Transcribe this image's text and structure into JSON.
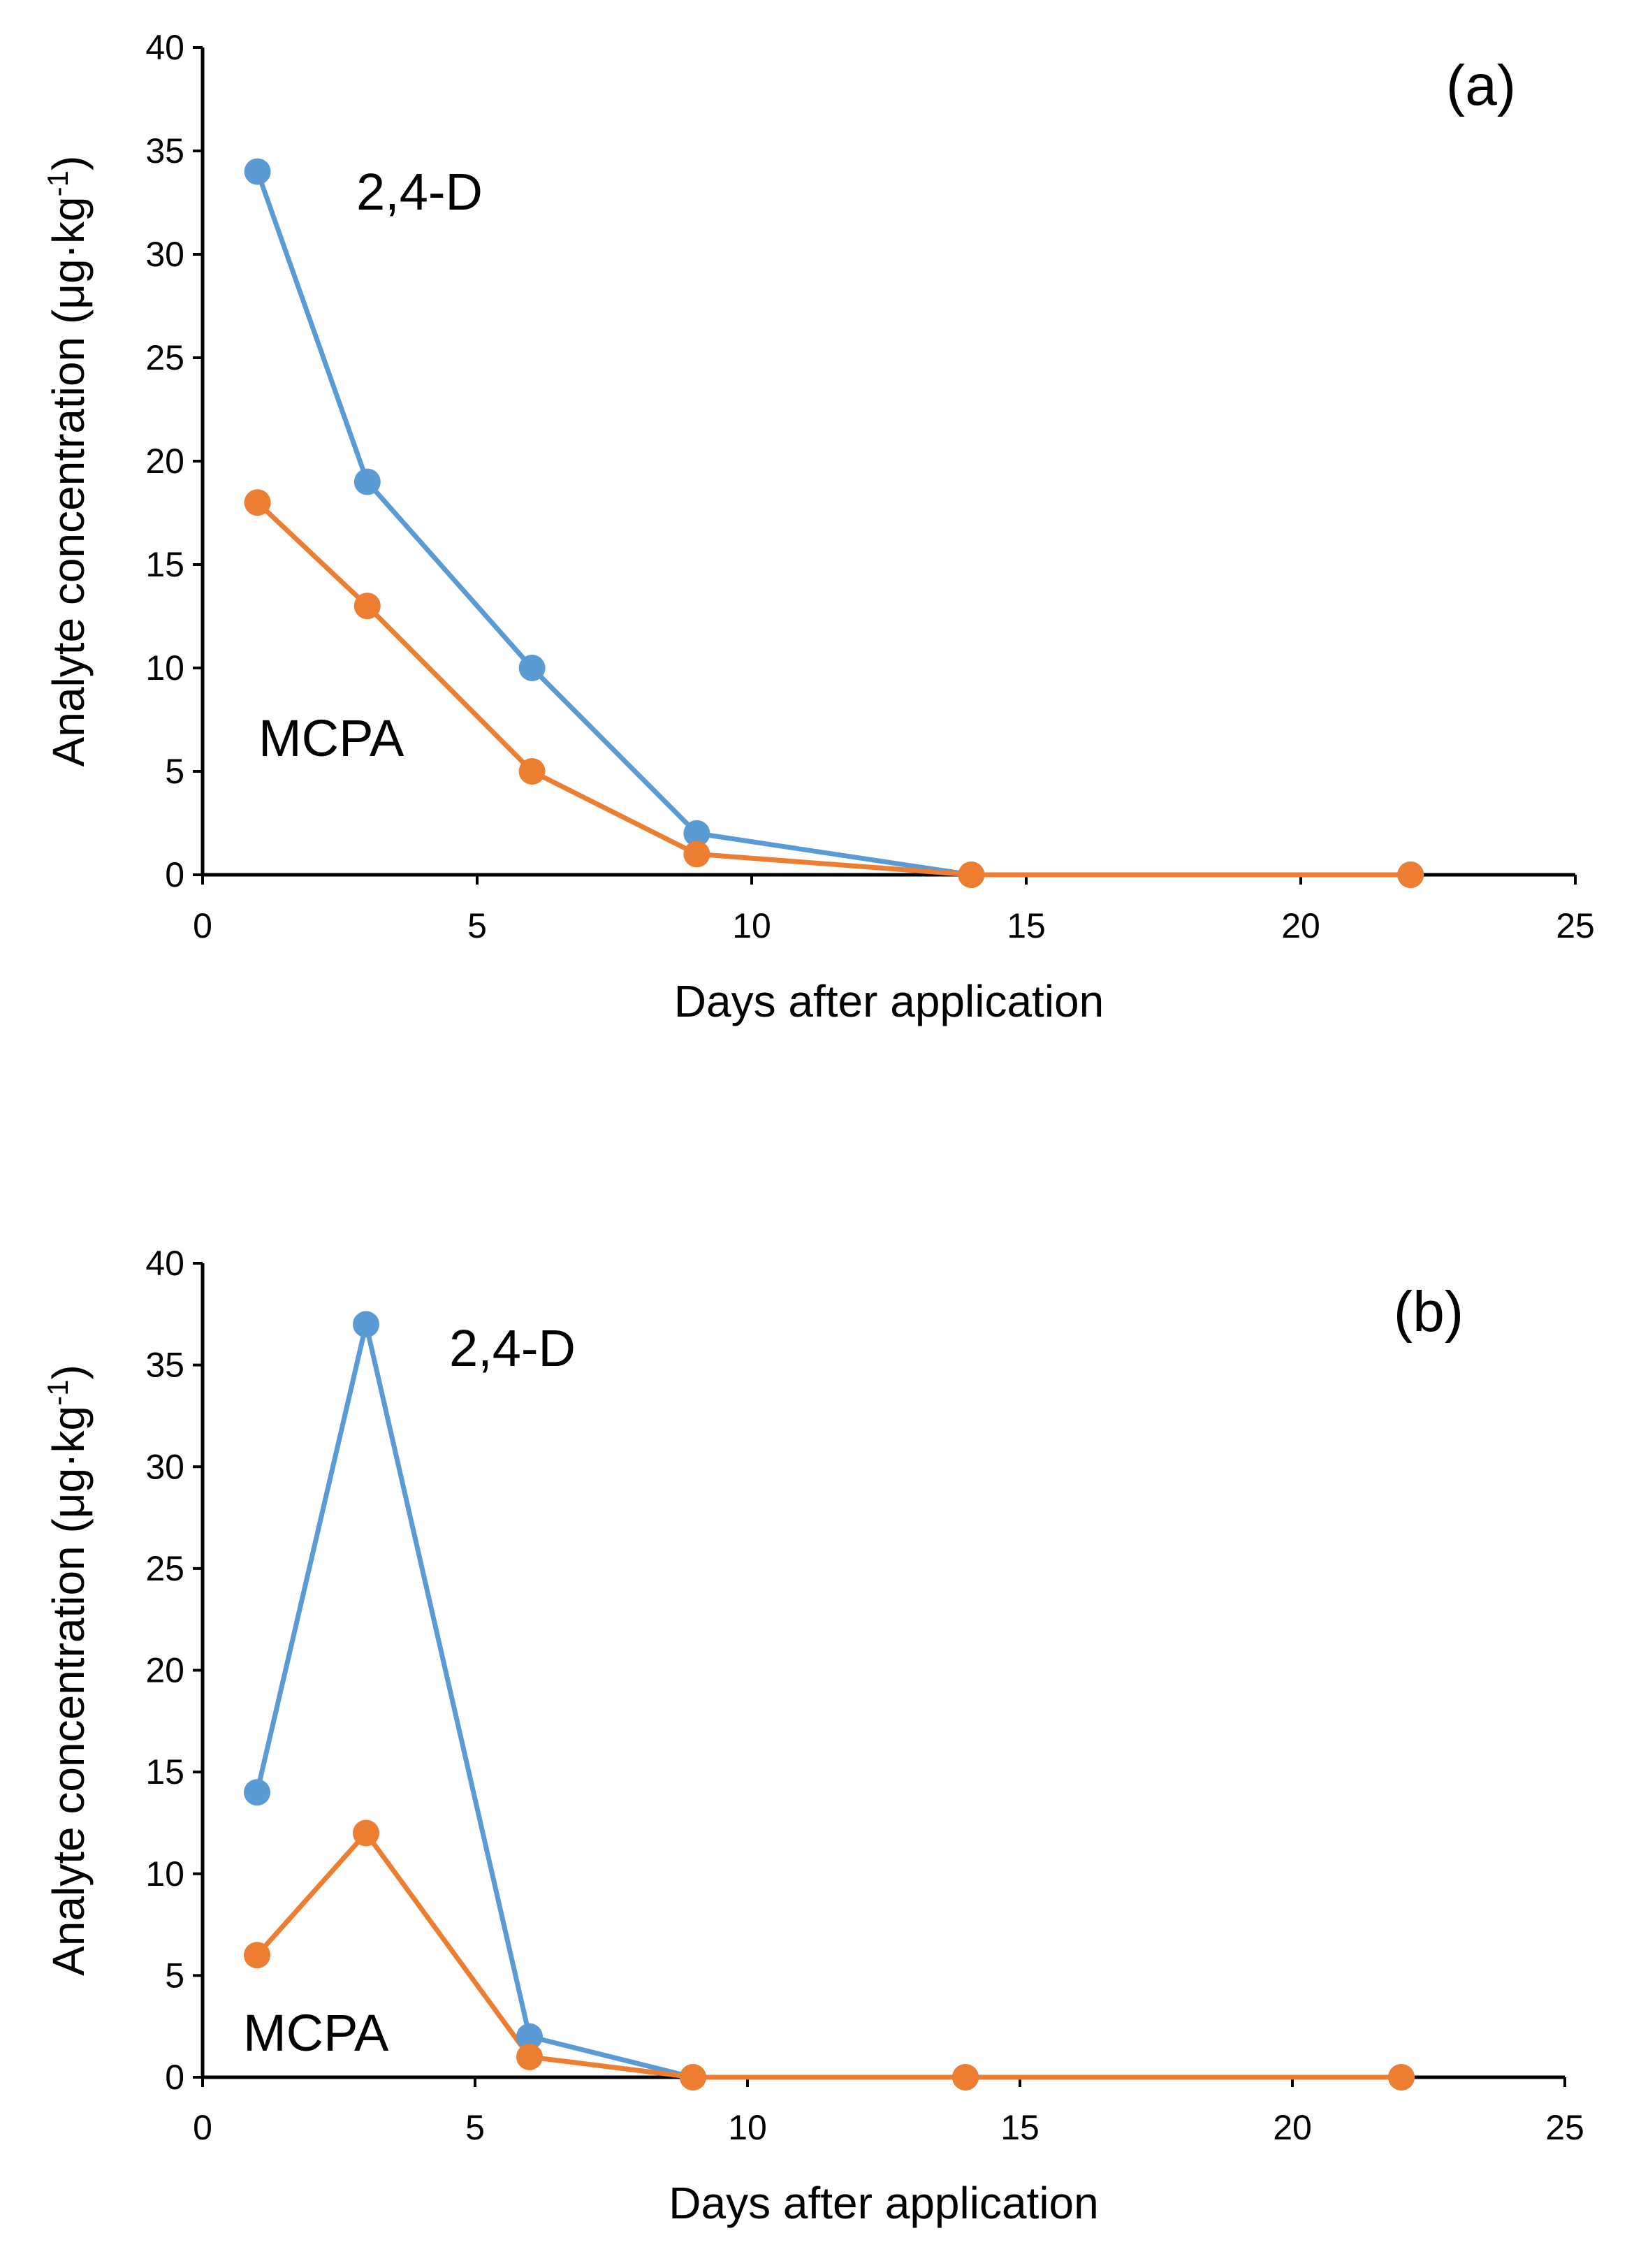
{
  "colors": {
    "series_1": "#5b9bd5",
    "series_2": "#ed7d31",
    "axis": "#000000"
  },
  "chart_data": [
    {
      "type": "line",
      "panel_label": "(a)",
      "xlabel": "Days after application",
      "ylabel": "Analyte concentration (μg·kg",
      "ylabel_superscript": "-1",
      "ylabel_suffix": ")",
      "xlim": [
        0,
        25
      ],
      "ylim": [
        0,
        40
      ],
      "xticks": [
        "0",
        "5",
        "10",
        "15",
        "20",
        "25"
      ],
      "yticks": [
        "0",
        "5",
        "10",
        "15",
        "20",
        "25",
        "30",
        "35",
        "40"
      ],
      "grid": false,
      "series": [
        {
          "name": "2,4-D",
          "color": "#5b9bd5",
          "x": [
            1,
            3,
            6,
            9,
            14,
            22
          ],
          "y": [
            34,
            19,
            10,
            2,
            0,
            0
          ]
        },
        {
          "name": "MCPA",
          "color": "#ed7d31",
          "x": [
            1,
            3,
            6,
            9,
            14,
            22
          ],
          "y": [
            18,
            13,
            5,
            1,
            0,
            0
          ]
        }
      ]
    },
    {
      "type": "line",
      "panel_label": "(b)",
      "xlabel": "Days after application",
      "ylabel": "Analyte concentration (μg·kg",
      "ylabel_superscript": "-1",
      "ylabel_suffix": ")",
      "xlim": [
        0,
        25
      ],
      "ylim": [
        0,
        40
      ],
      "xticks": [
        "0",
        "5",
        "10",
        "15",
        "20",
        "25"
      ],
      "yticks": [
        "0",
        "5",
        "10",
        "15",
        "20",
        "25",
        "30",
        "35",
        "40"
      ],
      "grid": false,
      "series": [
        {
          "name": "2,4-D",
          "color": "#5b9bd5",
          "x": [
            1,
            3,
            6,
            9,
            14,
            22
          ],
          "y": [
            14,
            37,
            2,
            0,
            0,
            0
          ]
        },
        {
          "name": "MCPA",
          "color": "#ed7d31",
          "x": [
            1,
            3,
            6,
            9,
            14,
            22
          ],
          "y": [
            6,
            12,
            1,
            0,
            0,
            0
          ]
        }
      ]
    }
  ]
}
